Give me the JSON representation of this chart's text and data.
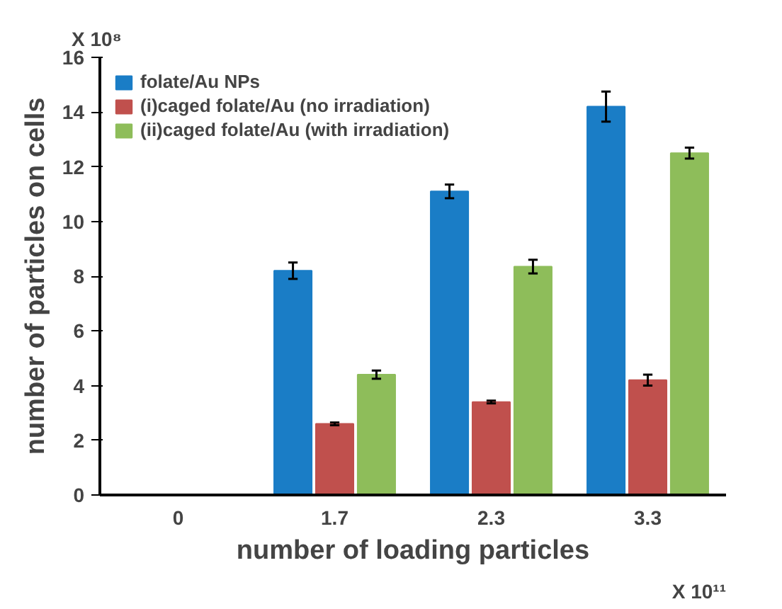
{
  "chart_data": {
    "type": "bar",
    "categories": [
      "0",
      "1.7",
      "2.3",
      "3.3"
    ],
    "xlabel": "number of loading particles",
    "ylabel": "number of particles on cells",
    "ylim": [
      0,
      16
    ],
    "yticks": [
      0,
      2,
      4,
      6,
      8,
      10,
      12,
      14,
      16
    ],
    "grid": false,
    "legend": "top left",
    "series": [
      {
        "name": "folate/Au NPs",
        "color": "#1a7dc6",
        "values": [
          null,
          8.2,
          11.1,
          14.2
        ],
        "errors": [
          null,
          0.3,
          0.25,
          0.55
        ]
      },
      {
        "name": "(i)caged folate/Au (no irradiation)",
        "color": "#c0504d",
        "values": [
          null,
          2.6,
          3.4,
          4.2
        ],
        "errors": [
          null,
          0.05,
          0.05,
          0.2
        ]
      },
      {
        "name": "(ii)caged folate/Au (with irradiation)",
        "color": "#8ebd5a",
        "values": [
          null,
          4.4,
          8.35,
          12.5
        ],
        "errors": [
          null,
          0.15,
          0.25,
          0.2
        ]
      }
    ],
    "annotations": [
      "X 10⁸",
      "X 10¹¹"
    ]
  }
}
